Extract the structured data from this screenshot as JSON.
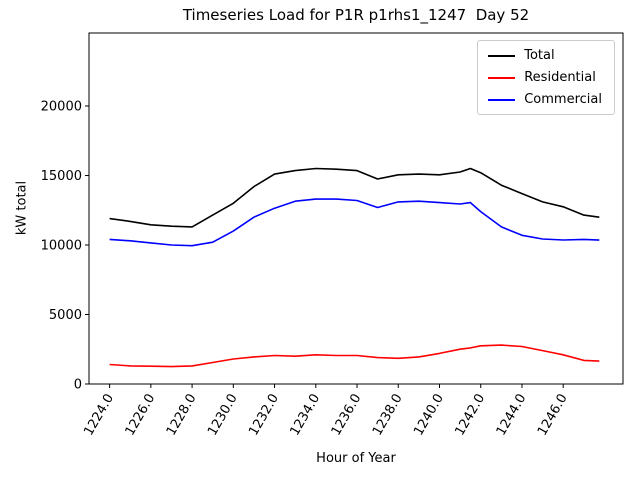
{
  "chart_data": {
    "type": "line",
    "title": "Timeseries Load for P1R p1rhs1_1247  Day 52",
    "xlabel": "Hour of Year",
    "ylabel": "kW total",
    "x": [
      1224,
      1225,
      1226,
      1227,
      1228,
      1229,
      1230,
      1231,
      1232,
      1233,
      1234,
      1235,
      1236,
      1237,
      1238,
      1239,
      1240,
      1241,
      1241.5,
      1242,
      1243,
      1244,
      1245,
      1246,
      1247,
      1247.75
    ],
    "series": [
      {
        "name": "Total",
        "color": "#000000",
        "values": [
          11900,
          11700,
          11450,
          11350,
          11300,
          12150,
          13000,
          14200,
          15100,
          15350,
          15500,
          15450,
          15350,
          14750,
          15050,
          15100,
          15050,
          15250,
          15500,
          15200,
          14300,
          13700,
          13100,
          12750,
          12150,
          12000
        ]
      },
      {
        "name": "Residential",
        "color": "#ff0000",
        "values": [
          1400,
          1300,
          1280,
          1250,
          1300,
          1550,
          1800,
          1950,
          2050,
          2000,
          2100,
          2050,
          2050,
          1900,
          1850,
          1950,
          2200,
          2500,
          2600,
          2750,
          2800,
          2700,
          2400,
          2100,
          1700,
          1650
        ]
      },
      {
        "name": "Commercial",
        "color": "#0000ff",
        "values": [
          10400,
          10300,
          10150,
          10000,
          9950,
          10200,
          11000,
          12000,
          12650,
          13150,
          13300,
          13300,
          13200,
          12700,
          13100,
          13150,
          13050,
          12950,
          13050,
          12400,
          11300,
          10700,
          10430,
          10360,
          10400,
          10350
        ]
      }
    ],
    "x_tick_values": [
      1224,
      1226,
      1228,
      1230,
      1232,
      1234,
      1236,
      1238,
      1240,
      1242,
      1244,
      1246
    ],
    "x_tick_labels": [
      "1224.0",
      "1226.0",
      "1228.0",
      "1230.0",
      "1232.0",
      "1234.0",
      "1236.0",
      "1238.0",
      "1240.0",
      "1242.0",
      "1244.0",
      "1246.0"
    ],
    "y_tick_values": [
      0,
      5000,
      10000,
      15000,
      20000
    ],
    "y_tick_labels": [
      "0",
      "5000",
      "10000",
      "15000",
      "20000"
    ],
    "xlim": [
      1223.0,
      1248.9
    ],
    "ylim": [
      0,
      25250
    ],
    "grid": false,
    "x_tick_rotation_deg": 60,
    "legend": {
      "position": "upper right",
      "entries": [
        "Total",
        "Residential",
        "Commercial"
      ]
    }
  }
}
